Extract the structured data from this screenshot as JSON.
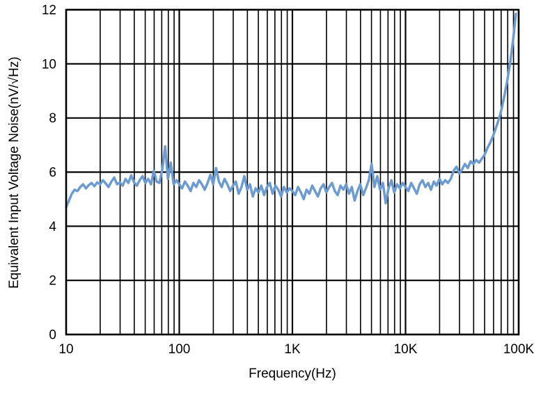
{
  "chart_data": {
    "type": "line",
    "title": "",
    "xlabel": "Frequency(Hz)",
    "ylabel": "Equivalent Input Voltage Noise(nV/√Hz)",
    "x_scale": "log",
    "xlim": [
      10,
      100000
    ],
    "ylim": [
      0,
      12
    ],
    "x_ticks": [
      {
        "value": 10,
        "label": "10"
      },
      {
        "value": 100,
        "label": "100"
      },
      {
        "value": 1000,
        "label": "1K"
      },
      {
        "value": 10000,
        "label": "10K"
      },
      {
        "value": 100000,
        "label": "100K"
      }
    ],
    "y_ticks": [
      0,
      2,
      4,
      6,
      8,
      10,
      12
    ],
    "grid": {
      "x": "log-major-and-minor",
      "y": "major",
      "color": "#000000"
    },
    "legend": "none",
    "series": [
      {
        "name": "equivalent-input-voltage-noise",
        "color": "#6C9BD2",
        "line_width": 3.5,
        "x_spacing": "log",
        "x_start": 10,
        "x_end": 94400,
        "values": [
          4.7,
          4.95,
          5.2,
          5.35,
          5.3,
          5.45,
          5.55,
          5.4,
          5.52,
          5.6,
          5.48,
          5.62,
          5.55,
          5.7,
          5.58,
          5.45,
          5.65,
          5.8,
          5.55,
          5.62,
          5.5,
          5.75,
          5.6,
          5.88,
          5.62,
          5.5,
          5.7,
          5.85,
          5.6,
          5.75,
          5.55,
          6.05,
          5.65,
          5.6,
          6.1,
          6.95,
          5.75,
          6.35,
          5.55,
          5.7,
          5.55,
          5.4,
          5.65,
          5.5,
          5.3,
          5.6,
          5.45,
          5.7,
          5.55,
          5.35,
          5.6,
          5.9,
          5.55,
          6.15,
          5.65,
          5.45,
          5.75,
          5.55,
          5.3,
          5.5,
          5.65,
          5.2,
          5.45,
          5.85,
          5.35,
          5.55,
          5.1,
          5.4,
          5.25,
          5.5,
          5.15,
          5.45,
          5.6,
          5.2,
          5.5,
          5.35,
          5.1,
          5.45,
          5.25,
          5.4,
          5.3,
          5.15,
          5.45,
          5.25,
          5.0,
          5.35,
          5.2,
          5.5,
          5.3,
          5.1,
          5.4,
          5.55,
          5.25,
          5.45,
          5.6,
          5.3,
          5.15,
          5.5,
          5.35,
          5.55,
          5.2,
          5.45,
          4.95,
          5.3,
          5.55,
          5.15,
          5.4,
          5.7,
          6.3,
          5.45,
          5.85,
          5.35,
          5.6,
          4.85,
          5.4,
          5.7,
          5.25,
          5.55,
          5.4,
          5.6,
          5.45,
          5.3,
          5.6,
          5.4,
          5.2,
          5.55,
          5.7,
          5.45,
          5.6,
          5.35,
          5.65,
          5.5,
          5.75,
          5.55,
          5.7,
          5.6,
          5.75,
          6.05,
          6.2,
          5.95,
          6.1,
          6.3,
          6.15,
          6.4,
          6.3,
          6.45,
          6.35,
          6.5,
          6.65,
          6.9,
          7.1,
          7.35,
          7.65,
          7.95,
          8.35,
          8.85,
          9.4,
          10.05,
          10.85,
          11.85
        ]
      }
    ]
  }
}
